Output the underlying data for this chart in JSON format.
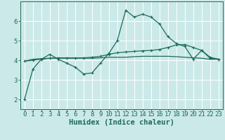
{
  "background_color": "#cce9e9",
  "grid_color": "#ffffff",
  "line_color": "#1a6b5a",
  "xlabel": "Humidex (Indice chaleur)",
  "xlabel_fontsize": 7.5,
  "tick_fontsize": 6.5,
  "xlim": [
    -0.5,
    23.5
  ],
  "ylim": [
    1.5,
    7.0
  ],
  "yticks": [
    2,
    3,
    4,
    5,
    6
  ],
  "xticks": [
    0,
    1,
    2,
    3,
    4,
    5,
    6,
    7,
    8,
    9,
    10,
    11,
    12,
    13,
    14,
    15,
    16,
    17,
    18,
    19,
    20,
    21,
    22,
    23
  ],
  "line1_x": [
    0,
    1,
    2,
    3,
    4,
    5,
    6,
    7,
    8,
    9,
    10,
    11,
    12,
    13,
    14,
    15,
    16,
    17,
    18,
    19,
    20,
    21,
    22,
    23
  ],
  "line1_y": [
    2.0,
    3.55,
    4.05,
    4.3,
    4.05,
    3.85,
    3.65,
    3.3,
    3.35,
    3.85,
    4.35,
    5.0,
    6.55,
    6.2,
    6.35,
    6.2,
    5.85,
    5.2,
    4.85,
    4.7,
    4.05,
    4.5,
    4.15,
    4.05
  ],
  "line2_x": [
    0,
    1,
    2,
    3,
    4,
    5,
    6,
    7,
    8,
    9,
    10,
    11,
    12,
    13,
    14,
    15,
    16,
    17,
    18,
    19,
    20,
    21,
    22,
    23
  ],
  "line2_y": [
    3.95,
    4.05,
    4.08,
    4.1,
    4.1,
    4.1,
    4.1,
    4.1,
    4.1,
    4.12,
    4.15,
    4.15,
    4.15,
    4.18,
    4.2,
    4.2,
    4.2,
    4.2,
    4.18,
    4.15,
    4.12,
    4.1,
    4.05,
    4.05
  ],
  "line3_x": [
    0,
    1,
    2,
    3,
    4,
    5,
    6,
    7,
    8,
    9,
    10,
    11,
    12,
    13,
    14,
    15,
    16,
    17,
    18,
    19,
    20,
    21,
    22,
    23
  ],
  "line3_y": [
    3.95,
    4.0,
    4.05,
    4.1,
    4.12,
    4.12,
    4.12,
    4.12,
    4.15,
    4.2,
    4.3,
    4.38,
    4.42,
    4.45,
    4.48,
    4.5,
    4.55,
    4.65,
    4.78,
    4.8,
    4.65,
    4.5,
    4.1,
    4.05
  ]
}
